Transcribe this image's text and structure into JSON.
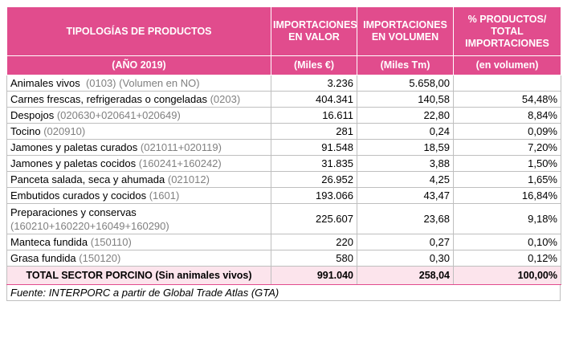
{
  "header": {
    "col1": "TIPOLOGÍAS DE PRODUCTOS",
    "col2": "IMPORTACIONES EN VALOR",
    "col3": "IMPORTACIONES EN VOLUMEN",
    "col4": "% PRODUCTOS/ TOTAL IMPORTACIONES",
    "sub1": "(AÑO 2019)",
    "sub2": "(Miles  €)",
    "sub3": "(Miles Tm)",
    "sub4": "(en volumen)"
  },
  "rows": [
    {
      "name": "Animales vivos",
      "code": "(0103) (Volumen en NO)",
      "valor": "3.236",
      "volumen": "5.658,00",
      "pct": ""
    },
    {
      "name": "Carnes frescas, refrigeradas o congeladas",
      "code": "(0203)",
      "valor": "404.341",
      "volumen": "140,58",
      "pct": "54,48%"
    },
    {
      "name": "Despojos",
      "code": "(020630+020641+020649)",
      "valor": "16.611",
      "volumen": "22,80",
      "pct": "8,84%"
    },
    {
      "name": "Tocino",
      "code": "(020910)",
      "valor": "281",
      "volumen": "0,24",
      "pct": "0,09%"
    },
    {
      "name": "Jamones y paletas curados",
      "code": "(021011+020119)",
      "valor": "91.548",
      "volumen": "18,59",
      "pct": "7,20%"
    },
    {
      "name": "Jamones y paletas cocidos",
      "code": "(160241+160242)",
      "valor": "31.835",
      "volumen": "3,88",
      "pct": "1,50%"
    },
    {
      "name": "Panceta salada, seca y ahumada",
      "code": "(021012)",
      "valor": "26.952",
      "volumen": "4,25",
      "pct": "1,65%"
    },
    {
      "name": "Embutidos curados y cocidos",
      "code": "(1601)",
      "valor": "193.066",
      "volumen": "43,47",
      "pct": "16,84%"
    },
    {
      "name": "Preparaciones y conservas",
      "code": "(160210+160220+16049+160290)",
      "valor": "225.607",
      "volumen": "23,68",
      "pct": "9,18%"
    },
    {
      "name": "Manteca fundida",
      "code": "(150110)",
      "valor": "220",
      "volumen": "0,27",
      "pct": "0,10%"
    },
    {
      "name": "Grasa fundida",
      "code": "(150120)",
      "valor": "580",
      "volumen": "0,30",
      "pct": "0,12%"
    }
  ],
  "total": {
    "name": "TOTAL SECTOR PORCINO (Sin animales vivos)",
    "valor": "991.040",
    "volumen": "258,04",
    "pct": "100,00%"
  },
  "source": "Fuente: INTERPORC a partir de Global Trade Atlas (GTA)",
  "colors": {
    "header_bg": "#e14c8d",
    "total_bg": "#fce4ec",
    "code_text": "#808080"
  }
}
